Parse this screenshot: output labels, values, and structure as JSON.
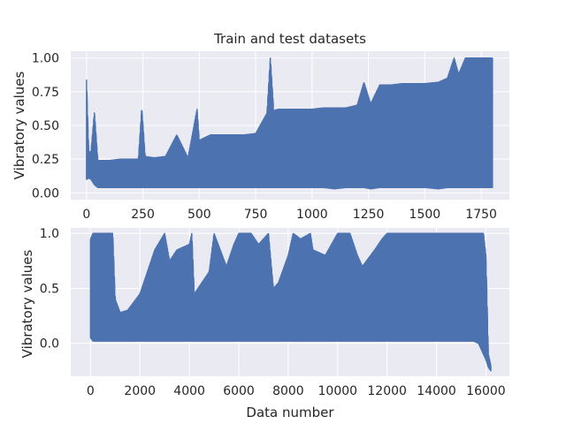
{
  "chart_data": [
    {
      "type": "line",
      "title": "Train and test datasets",
      "xlabel": "",
      "ylabel": "Vibratory values",
      "xlim": [
        -70,
        1875
      ],
      "ylim": [
        -0.05,
        1.05
      ],
      "x_ticks": [
        0,
        250,
        500,
        750,
        1000,
        1250,
        1500,
        1750
      ],
      "x_tick_labels": [
        "0",
        "250",
        "500",
        "750",
        "1000",
        "1250",
        "1500",
        "1750"
      ],
      "y_ticks": [
        0.0,
        0.25,
        0.5,
        0.75,
        1.0
      ],
      "y_tick_labels": [
        "0.00",
        "0.25",
        "0.50",
        "0.75",
        "1.00"
      ],
      "grid": true,
      "color": "#4c72b0",
      "n_points": 1800,
      "envelope": {
        "x": [
          0,
          10,
          20,
          35,
          50,
          100,
          150,
          200,
          230,
          245,
          260,
          300,
          350,
          400,
          450,
          490,
          500,
          550,
          600,
          650,
          700,
          750,
          800,
          815,
          830,
          850,
          900,
          950,
          1000,
          1050,
          1100,
          1150,
          1200,
          1230,
          1260,
          1300,
          1350,
          1400,
          1450,
          1500,
          1560,
          1600,
          1630,
          1650,
          1680,
          1700,
          1750,
          1800
        ],
        "low": [
          0.1,
          0.11,
          0.1,
          0.06,
          0.04,
          0.04,
          0.04,
          0.04,
          0.04,
          0.04,
          0.04,
          0.04,
          0.04,
          0.04,
          0.04,
          0.04,
          0.04,
          0.04,
          0.04,
          0.04,
          0.04,
          0.04,
          0.04,
          0.04,
          0.04,
          0.04,
          0.04,
          0.04,
          0.04,
          0.04,
          0.03,
          0.04,
          0.04,
          0.04,
          0.03,
          0.04,
          0.04,
          0.04,
          0.04,
          0.04,
          0.03,
          0.04,
          0.04,
          0.04,
          0.04,
          0.04,
          0.04,
          0.04
        ],
        "high": [
          0.84,
          0.3,
          0.31,
          0.6,
          0.24,
          0.24,
          0.25,
          0.25,
          0.25,
          0.63,
          0.27,
          0.26,
          0.27,
          0.43,
          0.26,
          0.62,
          0.39,
          0.43,
          0.43,
          0.43,
          0.43,
          0.44,
          0.59,
          1.0,
          0.61,
          0.62,
          0.62,
          0.62,
          0.62,
          0.63,
          0.63,
          0.63,
          0.65,
          0.82,
          0.66,
          0.8,
          0.8,
          0.81,
          0.81,
          0.81,
          0.82,
          0.85,
          1.0,
          0.88,
          1.0,
          1.0,
          1.0,
          1.0
        ]
      }
    },
    {
      "type": "line",
      "title": "",
      "xlabel": "Data number",
      "ylabel": "Vibratory values",
      "xlim": [
        -800,
        16950
      ],
      "ylim": [
        -0.3,
        1.05
      ],
      "x_ticks": [
        0,
        2000,
        4000,
        6000,
        8000,
        10000,
        12000,
        14000,
        16000
      ],
      "x_tick_labels": [
        "0",
        "2000",
        "4000",
        "6000",
        "8000",
        "10000",
        "12000",
        "14000",
        "16000"
      ],
      "y_ticks": [
        0.0,
        0.5,
        1.0
      ],
      "y_tick_labels": [
        "0.0",
        "0.5",
        "1.0"
      ],
      "grid": true,
      "color": "#4c72b0",
      "n_points": 16200,
      "envelope": {
        "x": [
          0,
          100,
          900,
          1000,
          1200,
          1500,
          2000,
          2300,
          2600,
          3000,
          3200,
          3500,
          4000,
          4100,
          4200,
          4500,
          4800,
          5000,
          5500,
          5800,
          6000,
          6500,
          6800,
          7200,
          7400,
          7600,
          8000,
          8200,
          8500,
          8900,
          9000,
          9500,
          10000,
          10500,
          10800,
          11000,
          11500,
          11800,
          12000,
          12500,
          13000,
          13500,
          14000,
          14500,
          15000,
          15500,
          15700,
          15900,
          16000,
          16100,
          16200
        ],
        "low": [
          0.05,
          0.02,
          0.02,
          0.02,
          0.02,
          0.02,
          0.02,
          0.02,
          0.02,
          0.02,
          0.02,
          0.02,
          0.02,
          0.02,
          0.02,
          0.02,
          0.02,
          0.02,
          0.02,
          0.02,
          0.02,
          0.02,
          0.02,
          0.02,
          0.02,
          0.02,
          0.02,
          0.02,
          0.02,
          0.02,
          0.02,
          0.02,
          0.02,
          0.02,
          0.02,
          0.02,
          0.02,
          0.02,
          0.02,
          0.02,
          0.02,
          0.02,
          0.02,
          0.02,
          0.02,
          0.02,
          0.0,
          -0.1,
          -0.15,
          -0.22,
          -0.25
        ],
        "high": [
          0.95,
          1.0,
          1.0,
          0.4,
          0.28,
          0.3,
          0.45,
          0.65,
          0.85,
          1.0,
          0.75,
          0.85,
          0.9,
          1.0,
          0.45,
          0.55,
          0.65,
          1.0,
          0.7,
          0.9,
          1.0,
          1.0,
          0.9,
          1.0,
          0.5,
          0.55,
          0.8,
          1.0,
          0.95,
          1.0,
          0.85,
          0.8,
          1.0,
          1.0,
          0.8,
          0.7,
          0.85,
          0.95,
          1.0,
          1.0,
          1.0,
          1.0,
          1.0,
          1.0,
          1.0,
          1.0,
          1.0,
          1.0,
          0.8,
          -0.1,
          -0.2
        ]
      }
    }
  ]
}
